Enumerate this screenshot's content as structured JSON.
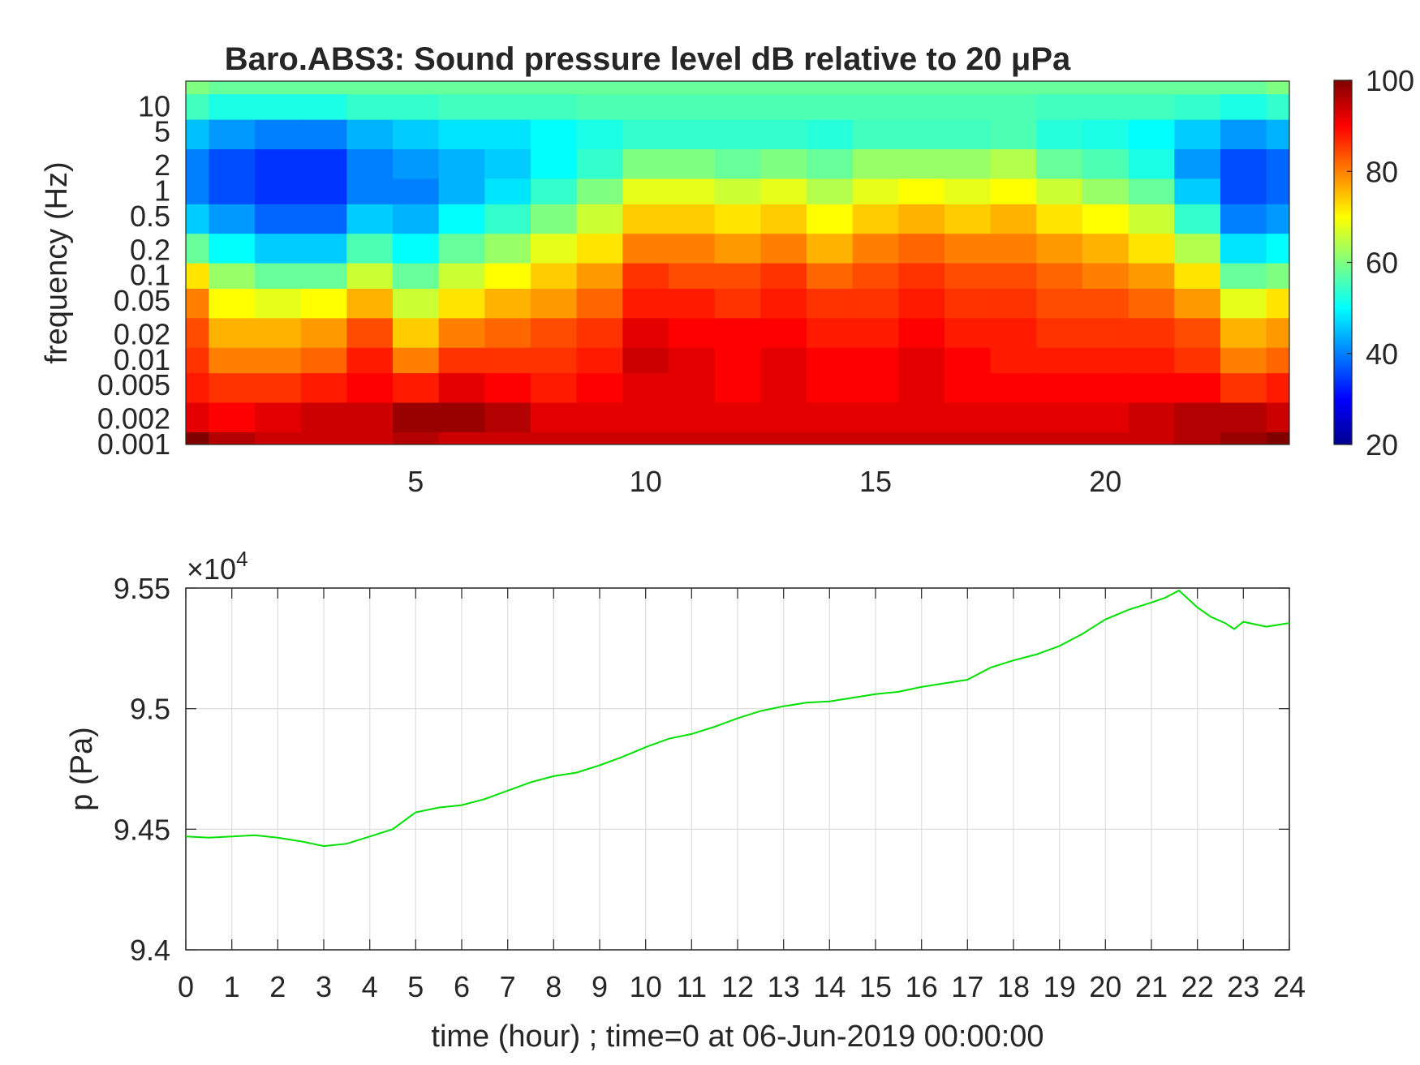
{
  "figure": {
    "title": "Baro.ABS3: Sound pressure level dB relative to 20 μPa"
  },
  "chart_data": [
    {
      "type": "heatmap",
      "title": "Baro.ABS3: Sound pressure level dB relative to 20 μPa",
      "ylabel": "frequency (Hz)",
      "yscale": "log",
      "xlim": [
        0,
        24
      ],
      "ylim": [
        0.001,
        20
      ],
      "x_ticks": [
        5,
        10,
        15,
        20
      ],
      "x_tick_labels": [
        "5",
        "10",
        "15",
        "20"
      ],
      "y_ticks": [
        0.001,
        0.002,
        0.005,
        0.01,
        0.02,
        0.05,
        0.1,
        0.2,
        0.5,
        1,
        2,
        5,
        10
      ],
      "y_tick_labels": [
        "0.001",
        "0.002",
        "0.005",
        "0.01",
        "0.02",
        "0.05",
        "0.1",
        "0.2",
        "0.5",
        "1",
        "2",
        "5",
        "10"
      ],
      "colormap": "jet",
      "colorbar": {
        "range": [
          20,
          100
        ],
        "ticks": [
          "20",
          "40",
          "60",
          "80",
          "100"
        ]
      },
      "time_hours": [
        0,
        1,
        2,
        3,
        4,
        5,
        6,
        7,
        8,
        9,
        10,
        11,
        12,
        13,
        14,
        15,
        16,
        17,
        18,
        19,
        20,
        21,
        22,
        23,
        24
      ],
      "frequency_hz": [
        0.001,
        0.002,
        0.005,
        0.01,
        0.02,
        0.05,
        0.1,
        0.2,
        0.5,
        1,
        2,
        5,
        10,
        20
      ],
      "level_db": [
        [
          100,
          92,
          88,
          86,
          84,
          80,
          72,
          58,
          46,
          40,
          40,
          45,
          55,
          60
        ],
        [
          96,
          90,
          86,
          80,
          76,
          70,
          62,
          50,
          42,
          36,
          36,
          42,
          52,
          58
        ],
        [
          94,
          92,
          86,
          80,
          76,
          68,
          58,
          46,
          38,
          34,
          34,
          40,
          52,
          58
        ],
        [
          94,
          94,
          88,
          82,
          78,
          70,
          58,
          46,
          38,
          34,
          34,
          40,
          52,
          58
        ],
        [
          94,
          94,
          90,
          88,
          84,
          76,
          66,
          56,
          46,
          40,
          40,
          44,
          54,
          58
        ],
        [
          96,
          98,
          88,
          80,
          74,
          66,
          58,
          50,
          44,
          40,
          42,
          46,
          54,
          58
        ],
        [
          94,
          98,
          92,
          86,
          80,
          72,
          66,
          58,
          50,
          44,
          44,
          48,
          55,
          58
        ],
        [
          94,
          96,
          90,
          86,
          82,
          76,
          70,
          62,
          54,
          48,
          46,
          48,
          55,
          58
        ],
        [
          94,
          92,
          88,
          86,
          84,
          78,
          74,
          68,
          60,
          54,
          50,
          50,
          55,
          58
        ],
        [
          94,
          92,
          90,
          88,
          86,
          82,
          78,
          72,
          66,
          60,
          54,
          52,
          56,
          58
        ],
        [
          94,
          92,
          92,
          94,
          92,
          88,
          86,
          80,
          74,
          68,
          60,
          54,
          56,
          58
        ],
        [
          94,
          92,
          92,
          92,
          90,
          88,
          84,
          80,
          74,
          68,
          60,
          54,
          56,
          58
        ],
        [
          94,
          92,
          90,
          90,
          90,
          86,
          84,
          78,
          72,
          66,
          58,
          54,
          56,
          58
        ],
        [
          94,
          92,
          92,
          92,
          90,
          88,
          86,
          80,
          74,
          68,
          60,
          54,
          56,
          58
        ],
        [
          94,
          92,
          90,
          90,
          88,
          86,
          82,
          76,
          70,
          64,
          58,
          53,
          56,
          58
        ],
        [
          94,
          92,
          90,
          90,
          88,
          86,
          84,
          80,
          74,
          68,
          62,
          55,
          56,
          58
        ],
        [
          94,
          92,
          92,
          92,
          90,
          88,
          86,
          82,
          76,
          70,
          62,
          55,
          56,
          58
        ],
        [
          94,
          92,
          90,
          90,
          88,
          86,
          84,
          80,
          74,
          68,
          62,
          55,
          56,
          58
        ],
        [
          94,
          92,
          90,
          88,
          88,
          86,
          84,
          80,
          76,
          70,
          64,
          56,
          56,
          58
        ],
        [
          94,
          92,
          90,
          88,
          86,
          84,
          82,
          78,
          72,
          66,
          58,
          53,
          55,
          58
        ],
        [
          94,
          92,
          90,
          88,
          86,
          84,
          80,
          76,
          70,
          62,
          56,
          52,
          55,
          58
        ],
        [
          94,
          94,
          90,
          88,
          86,
          82,
          78,
          72,
          66,
          58,
          52,
          50,
          55,
          58
        ],
        [
          96,
          96,
          90,
          86,
          84,
          78,
          72,
          64,
          54,
          46,
          42,
          46,
          54,
          58
        ],
        [
          98,
          96,
          86,
          80,
          76,
          68,
          58,
          48,
          40,
          36,
          36,
          42,
          52,
          58
        ],
        [
          100,
          94,
          88,
          82,
          78,
          72,
          60,
          50,
          42,
          38,
          38,
          44,
          54,
          60
        ]
      ]
    },
    {
      "type": "line",
      "xlabel": "time (hour) ; time=0 at 06-Jun-2019 00:00:00",
      "ylabel": "p (Pa)",
      "xlim": [
        0,
        24
      ],
      "ylim": [
        94000,
        95500
      ],
      "grid": true,
      "y_exponent_label": "×10",
      "y_exponent_power": "4",
      "x_ticks": [
        0,
        1,
        2,
        3,
        4,
        5,
        6,
        7,
        8,
        9,
        10,
        11,
        12,
        13,
        14,
        15,
        16,
        17,
        18,
        19,
        20,
        21,
        22,
        23,
        24
      ],
      "x_tick_labels": [
        "0",
        "1",
        "2",
        "3",
        "4",
        "5",
        "6",
        "7",
        "8",
        "9",
        "10",
        "11",
        "12",
        "13",
        "14",
        "15",
        "16",
        "17",
        "18",
        "19",
        "20",
        "21",
        "22",
        "23",
        "24"
      ],
      "y_ticks": [
        94000,
        94500,
        95000,
        95500
      ],
      "y_tick_labels": [
        "9.4",
        "9.45",
        "9.5",
        "9.55"
      ],
      "series": [
        {
          "color": "#00e000",
          "x": [
            0,
            0.5,
            1,
            1.5,
            2,
            2.5,
            3,
            3.5,
            4,
            4.5,
            5,
            5.5,
            6,
            6.5,
            7,
            7.5,
            8,
            8.5,
            9,
            9.5,
            10,
            10.5,
            11,
            11.5,
            12,
            12.5,
            13,
            13.5,
            14,
            14.5,
            15,
            15.5,
            16,
            16.5,
            17,
            17.5,
            18,
            18.5,
            19,
            19.5,
            20,
            20.5,
            21,
            21.3,
            21.6,
            22,
            22.3,
            22.6,
            22.8,
            23,
            23.5,
            24
          ],
          "y": [
            94470,
            94465,
            94470,
            94475,
            94465,
            94450,
            94430,
            94440,
            94470,
            94500,
            94570,
            94590,
            94600,
            94625,
            94660,
            94695,
            94720,
            94735,
            94765,
            94800,
            94840,
            94875,
            94895,
            94925,
            94960,
            94990,
            95010,
            95025,
            95030,
            95045,
            95060,
            95070,
            95090,
            95105,
            95120,
            95170,
            95200,
            95225,
            95260,
            95310,
            95370,
            95410,
            95440,
            95460,
            95490,
            95420,
            95380,
            95355,
            95330,
            95360,
            95340,
            95355
          ]
        }
      ]
    }
  ]
}
